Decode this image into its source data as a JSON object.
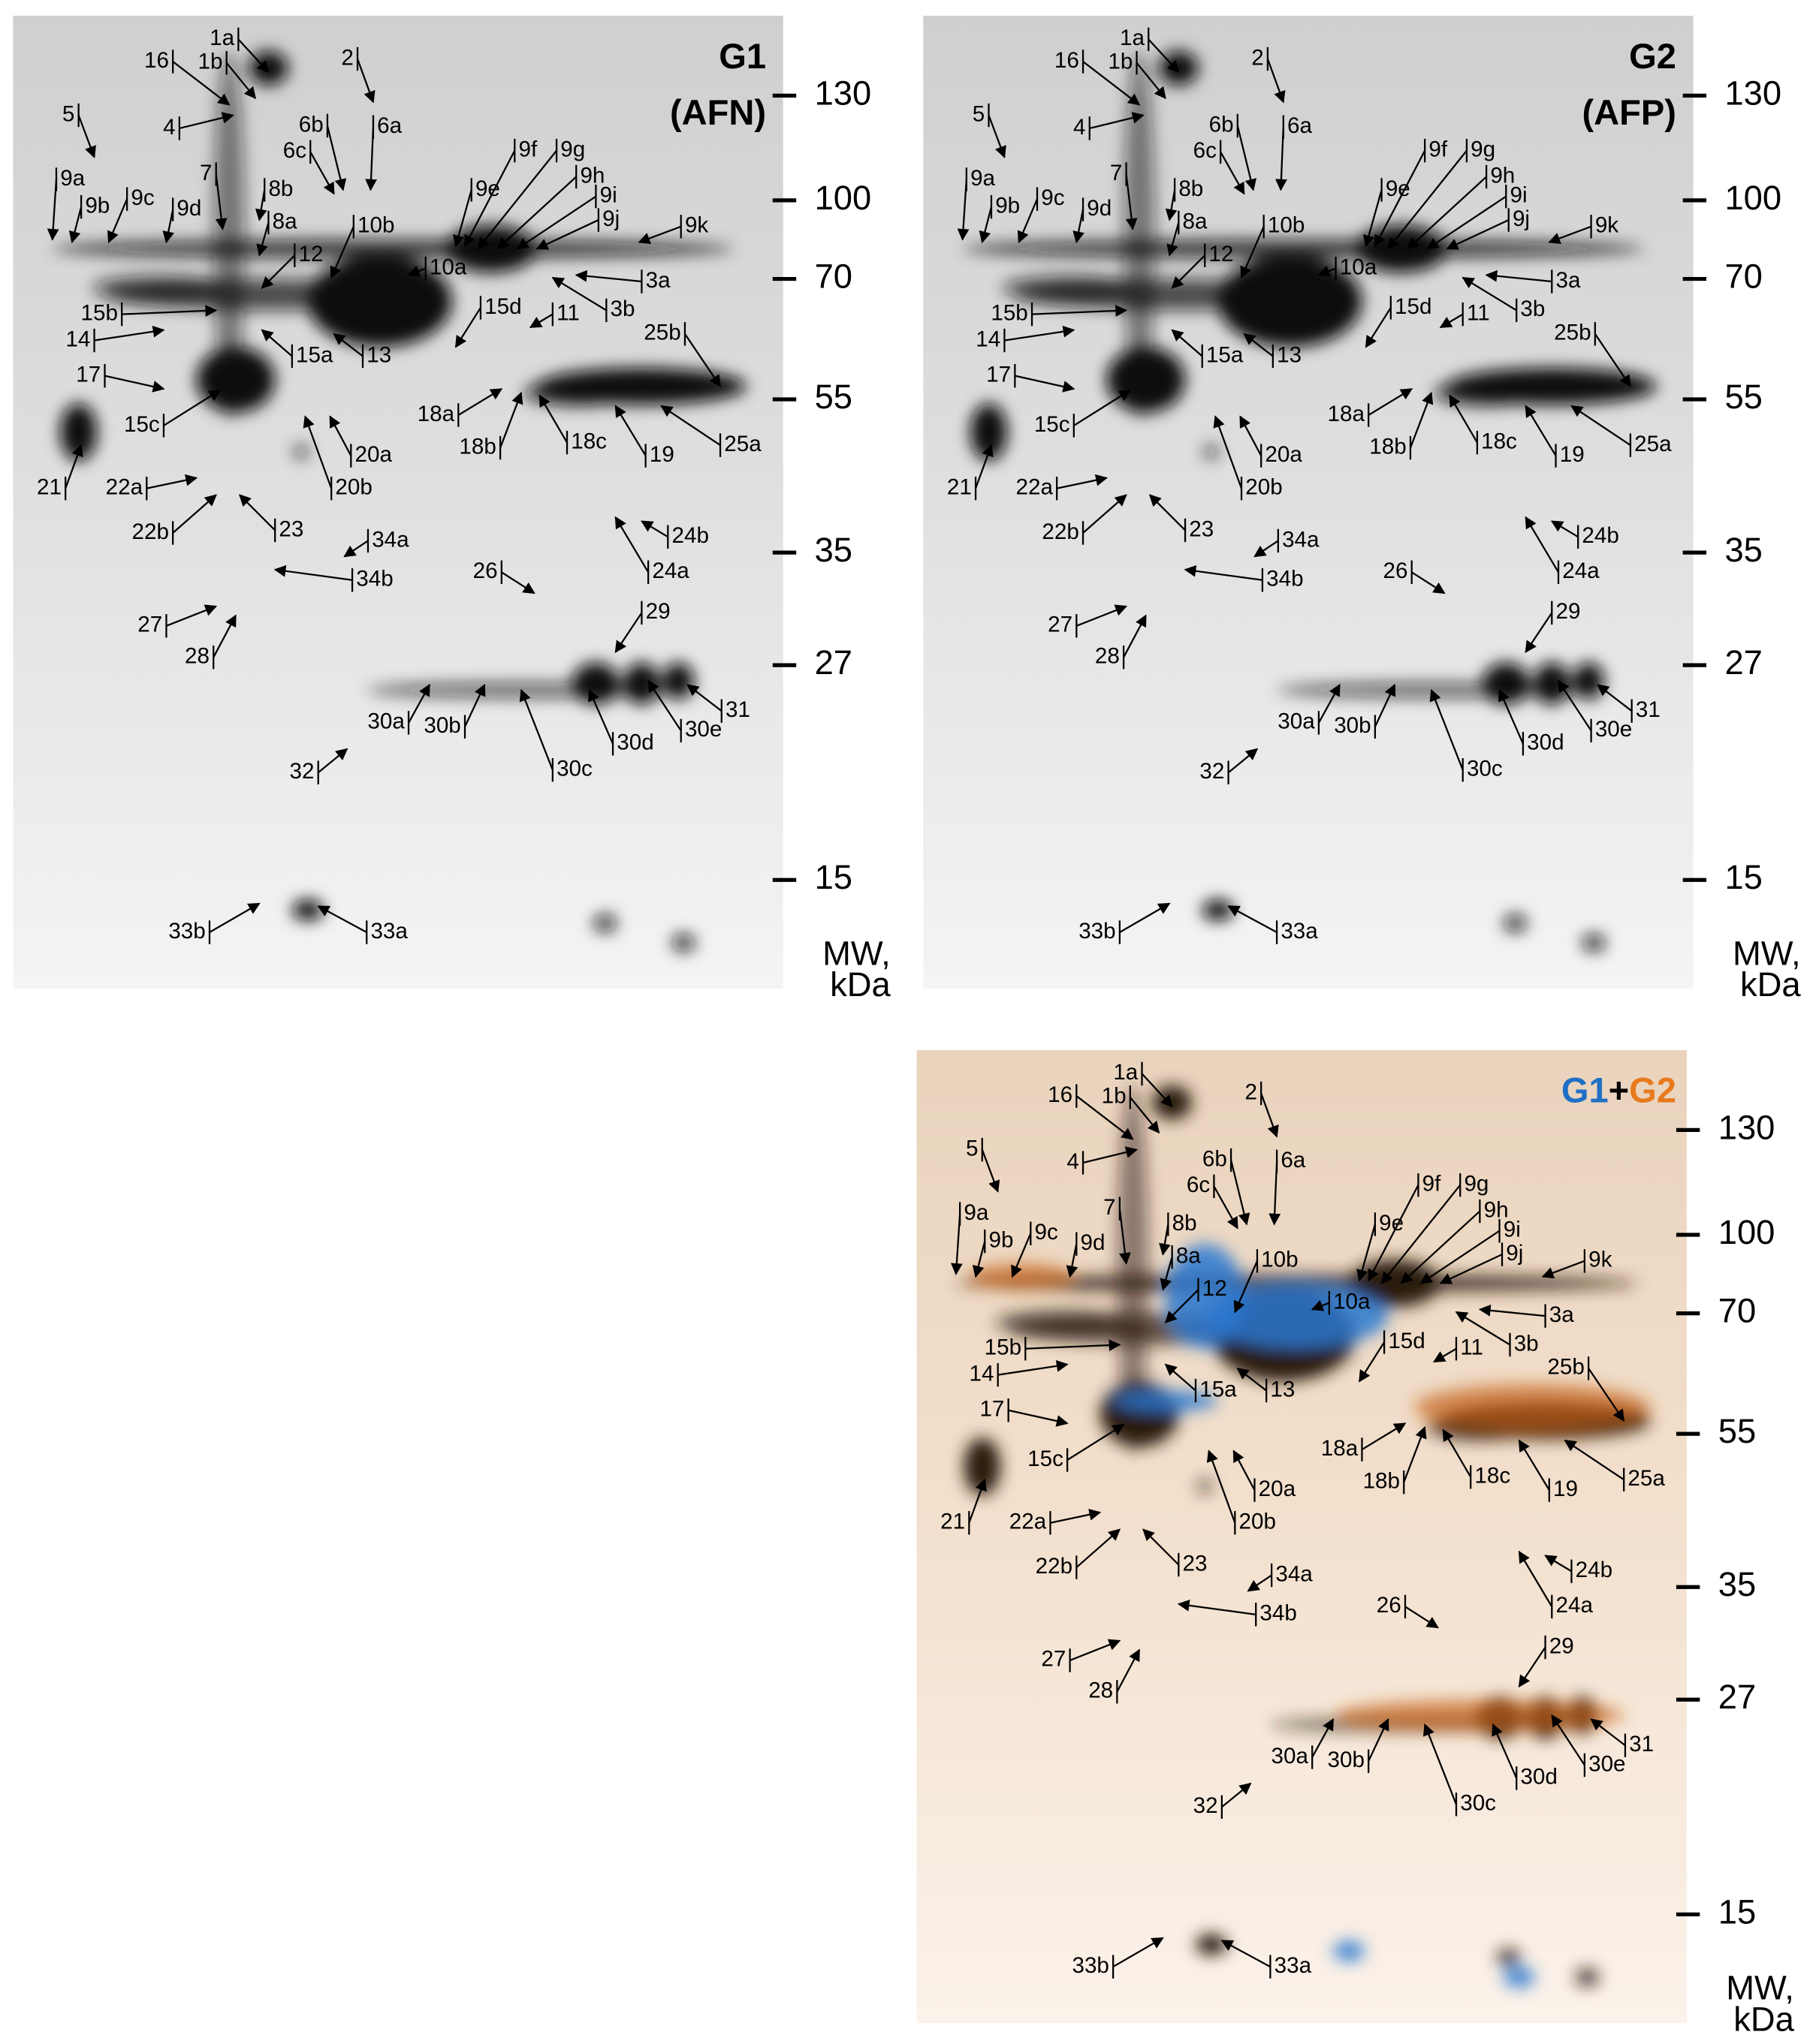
{
  "panels": [
    {
      "title": "G1",
      "subtitle": "(AFN)"
    },
    {
      "title": "G2",
      "subtitle": "(AFP)"
    },
    {
      "title_parts": [
        "G1",
        "+",
        "G2"
      ]
    }
  ],
  "mw_ticks": [
    130,
    100,
    70,
    55,
    35,
    27,
    15
  ],
  "mw_label": [
    "MW,",
    "kDa"
  ],
  "spots": [
    "1a",
    "1b",
    "16",
    "2",
    "4",
    "5",
    "6b",
    "6a",
    "6c",
    "7",
    "8b",
    "8a",
    "9a",
    "9b",
    "9c",
    "9d",
    "9e",
    "9f",
    "9g",
    "9h",
    "9i",
    "9j",
    "9k",
    "10b",
    "10a",
    "12",
    "3a",
    "3b",
    "15d",
    "11",
    "13",
    "15a",
    "15b",
    "14",
    "25b",
    "17",
    "18a",
    "18b",
    "18c",
    "19",
    "25a",
    "15c",
    "20a",
    "20b",
    "21",
    "22a",
    "22b",
    "23",
    "34a",
    "34b",
    "24b",
    "24a",
    "26",
    "27",
    "29",
    "28",
    "30a",
    "30b",
    "30c",
    "30d",
    "30e",
    "31",
    "32",
    "33b",
    "33a"
  ]
}
